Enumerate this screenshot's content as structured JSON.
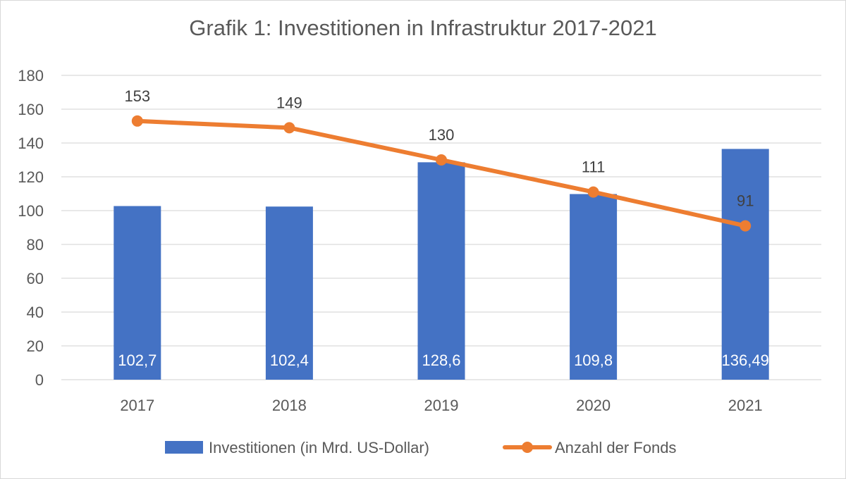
{
  "chart_data": {
    "type": "bar",
    "title": "Grafik 1: Investitionen in Infrastruktur 2017-2021",
    "categories": [
      "2017",
      "2018",
      "2019",
      "2020",
      "2021"
    ],
    "ylim": [
      0,
      180
    ],
    "yticks": [
      0,
      20,
      40,
      60,
      80,
      100,
      120,
      140,
      160,
      180
    ],
    "grid": true,
    "legend_position": "bottom",
    "series": [
      {
        "name": "Investitionen  (in Mrd. US-Dollar)",
        "type": "bar",
        "color": "#4472c4",
        "values": [
          102.7,
          102.4,
          128.6,
          109.8,
          136.49
        ],
        "labels": [
          "102,7",
          "102,4",
          "128,6",
          "109,8",
          "136,49"
        ]
      },
      {
        "name": "Anzahl der Fonds",
        "type": "line",
        "color": "#ed7d31",
        "values": [
          153,
          149,
          130,
          111,
          91
        ],
        "labels": [
          "153",
          "149",
          "130",
          "111",
          "91"
        ]
      }
    ]
  }
}
